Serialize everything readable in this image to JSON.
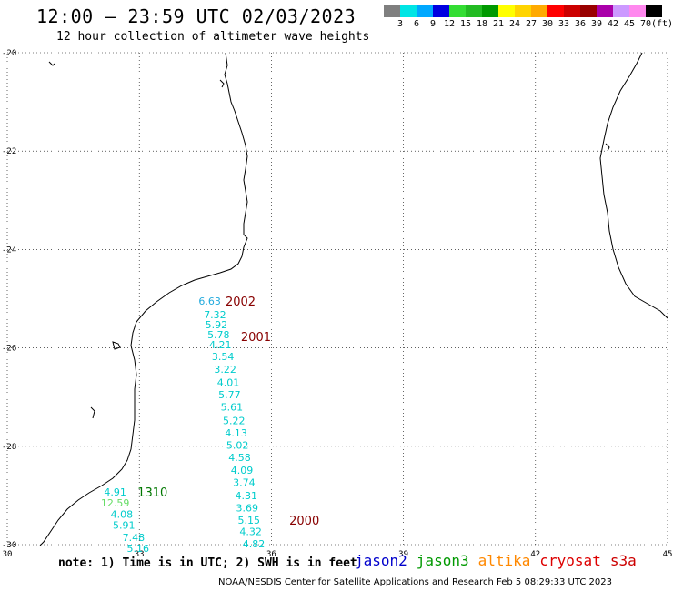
{
  "title": "12:00 – 23:59 UTC 02/03/2023",
  "subtitle": "12 hour collection of altimeter wave heights",
  "legend": {
    "colors": [
      "#7f7f7f",
      "#00e5e5",
      "#00a8ff",
      "#0000e0",
      "#33dd33",
      "#22bb22",
      "#009900",
      "#ffff00",
      "#ffd400",
      "#ffaa00",
      "#ff0000",
      "#cc0000",
      "#990000",
      "#aa00aa",
      "#cc99ff",
      "#ff88ee",
      "#000000"
    ],
    "labels": [
      "3",
      "6",
      "9",
      "12",
      "15",
      "18",
      "21",
      "24",
      "27",
      "30",
      "33",
      "36",
      "39",
      "42",
      "45",
      "70",
      "(ft)"
    ]
  },
  "axes": {
    "lon_labels": [
      "30",
      "33",
      "36",
      "39",
      "42",
      "45"
    ],
    "lat_labels": [
      "-20",
      "-22",
      "-24",
      "-26",
      "-28",
      "-30"
    ]
  },
  "observations": [
    {
      "v": "6.63",
      "lon": 34.6,
      "lat": -25.05,
      "color": "#22aadd"
    },
    {
      "v": "7.32",
      "lon": 34.72,
      "lat": -25.32,
      "color": "#00cccc"
    },
    {
      "v": "5.92",
      "lon": 34.75,
      "lat": -25.53,
      "color": "#00cccc"
    },
    {
      "v": "5.78",
      "lon": 34.8,
      "lat": -25.73,
      "color": "#00cccc"
    },
    {
      "v": "4.21",
      "lon": 34.84,
      "lat": -25.93,
      "color": "#00cccc"
    },
    {
      "v": "3.54",
      "lon": 34.9,
      "lat": -26.17,
      "color": "#00cccc"
    },
    {
      "v": "3.22",
      "lon": 34.95,
      "lat": -26.43,
      "color": "#00cccc"
    },
    {
      "v": "4.01",
      "lon": 35.02,
      "lat": -26.7,
      "color": "#00cccc"
    },
    {
      "v": "5.77",
      "lon": 35.05,
      "lat": -26.95,
      "color": "#00cccc"
    },
    {
      "v": "5.61",
      "lon": 35.1,
      "lat": -27.2,
      "color": "#00cccc"
    },
    {
      "v": "5.22",
      "lon": 35.15,
      "lat": -27.48,
      "color": "#00cccc"
    },
    {
      "v": "4.13",
      "lon": 35.2,
      "lat": -27.73,
      "color": "#00cccc"
    },
    {
      "v": "5.02",
      "lon": 35.23,
      "lat": -27.98,
      "color": "#00cccc"
    },
    {
      "v": "4.58",
      "lon": 35.28,
      "lat": -28.23,
      "color": "#00cccc"
    },
    {
      "v": "4.09",
      "lon": 35.33,
      "lat": -28.48,
      "color": "#00cccc"
    },
    {
      "v": "3.74",
      "lon": 35.38,
      "lat": -28.73,
      "color": "#00cccc"
    },
    {
      "v": "4.31",
      "lon": 35.43,
      "lat": -29.0,
      "color": "#00cccc"
    },
    {
      "v": "3.69",
      "lon": 35.45,
      "lat": -29.25,
      "color": "#00cccc"
    },
    {
      "v": "5.15",
      "lon": 35.49,
      "lat": -29.5,
      "color": "#00cccc"
    },
    {
      "v": "4.32",
      "lon": 35.53,
      "lat": -29.73,
      "color": "#00cccc"
    },
    {
      "v": "4.82",
      "lon": 35.6,
      "lat": -29.98,
      "color": "#00cccc"
    },
    {
      "v": "4.91",
      "lon": 32.45,
      "lat": -28.93,
      "color": "#00cccc"
    },
    {
      "v": "12.59",
      "lon": 32.45,
      "lat": -29.15,
      "color": "#66dd66"
    },
    {
      "v": "4.08",
      "lon": 32.6,
      "lat": -29.38,
      "color": "#00cccc"
    },
    {
      "v": "5.91",
      "lon": 32.65,
      "lat": -29.6,
      "color": "#00cccc"
    },
    {
      "v": "7.48",
      "lon": 32.87,
      "lat": -29.85,
      "color": "#00cccc"
    },
    {
      "v": "5.16",
      "lon": 32.97,
      "lat": -30.07,
      "color": "#00cccc"
    }
  ],
  "tracks": [
    {
      "t": "2002",
      "lon": 35.3,
      "lat": -25.05,
      "color": "#880000"
    },
    {
      "t": "2001",
      "lon": 35.65,
      "lat": -25.77,
      "color": "#880000"
    },
    {
      "t": "1310",
      "lon": 33.3,
      "lat": -28.93,
      "color": "#007700"
    },
    {
      "t": "2000",
      "lon": 36.75,
      "lat": -29.5,
      "color": "#880000"
    }
  ],
  "note": "note: 1) Time is in UTC; 2) SWH is in feet",
  "satellites": [
    {
      "name": "jason2",
      "color": "#0000cc"
    },
    {
      "name": "jason3",
      "color": "#009900"
    },
    {
      "name": "altika",
      "color": "#ff8800"
    },
    {
      "name": "cryosat",
      "color": "#dd0000"
    },
    {
      "name": "s3a",
      "color": "#cc0000"
    }
  ],
  "credit": "NOAA/NESDIS Center for Satellite Applications and Research   Feb  5 08:29:33 UTC 2023"
}
